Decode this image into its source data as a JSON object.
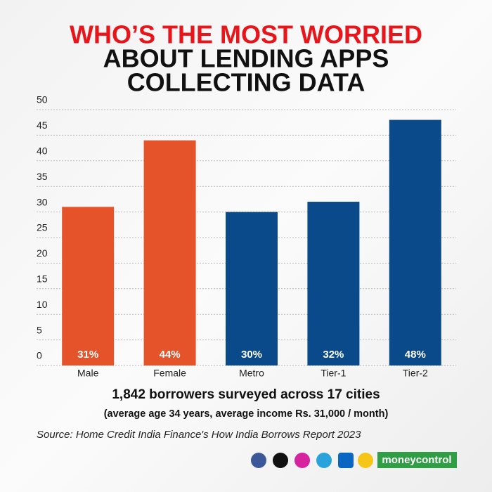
{
  "chart_data": {
    "type": "bar",
    "title": [
      "WHO’S THE MOST WORRIED",
      "ABOUT LENDING APPS",
      "COLLECTING DATA"
    ],
    "categories": [
      "Male",
      "Female",
      "Metro",
      "Tier-1",
      "Tier-2"
    ],
    "values": [
      31,
      44,
      30,
      32,
      48
    ],
    "value_labels": [
      "31%",
      "44%",
      "30%",
      "32%",
      "48%"
    ],
    "colors": [
      "#e4532a",
      "#e4532a",
      "#0b4a8a",
      "#0b4a8a",
      "#0b4a8a"
    ],
    "ylim": [
      0,
      50
    ],
    "yticks": [
      0,
      5,
      10,
      15,
      20,
      25,
      30,
      35,
      40,
      45,
      50
    ],
    "grid": true,
    "subtitle": [
      "1,842 borrowers surveyed across 17 cities",
      "(average age 34 years, average income Rs. 31,000 / month)"
    ],
    "source": "Source: Home Credit India Finance's How India Borrows Report 2023",
    "brand": "moneycontrol"
  }
}
